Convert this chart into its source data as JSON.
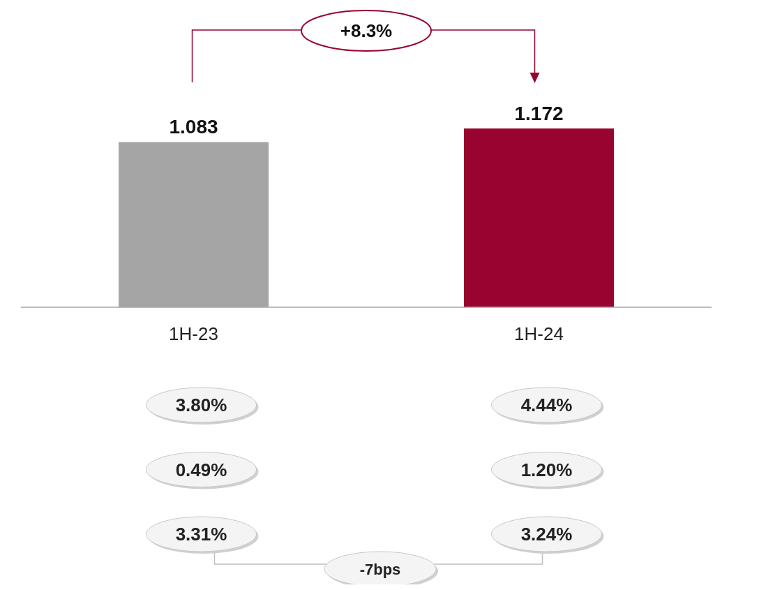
{
  "chart_data": {
    "type": "bar",
    "categories": [
      "1H-23",
      "1H-24"
    ],
    "values": [
      1.083,
      1.172
    ],
    "colors": [
      "#a5a5a5",
      "#99032f"
    ],
    "data_labels": true,
    "annotations": [
      "+8.3%",
      "3.80%",
      "4.44%",
      "0.49%",
      "1.20%",
      "3.31%",
      "3.24%",
      "-7bps"
    ]
  }
}
